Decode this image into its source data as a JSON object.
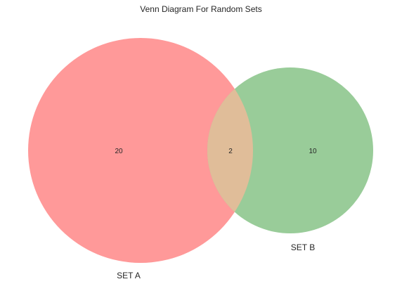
{
  "chart_data": {
    "type": "venn",
    "title": "Venn Diagram For Random Sets",
    "sets": [
      {
        "name": "SET A",
        "only_count": 20,
        "color": "#ff9999"
      },
      {
        "name": "SET B",
        "only_count": 10,
        "color": "#99cc99"
      }
    ],
    "intersection": {
      "count": 2,
      "color": "#e0bd99"
    }
  }
}
